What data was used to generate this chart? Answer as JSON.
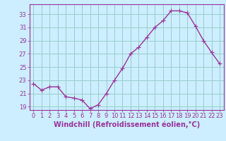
{
  "x": [
    0,
    1,
    2,
    3,
    4,
    5,
    6,
    7,
    8,
    9,
    10,
    11,
    12,
    13,
    14,
    15,
    16,
    17,
    18,
    19,
    20,
    21,
    22,
    23
  ],
  "y": [
    22.5,
    21.5,
    22.0,
    22.0,
    20.5,
    20.3,
    20.0,
    18.7,
    19.3,
    21.0,
    23.0,
    24.8,
    27.0,
    28.0,
    29.5,
    31.0,
    32.0,
    33.5,
    33.5,
    33.2,
    31.2,
    29.0,
    27.2,
    25.5
  ],
  "line_color": "#993399",
  "marker": "+",
  "marker_size": 4,
  "bg_color": "#cceeff",
  "grid_color": "#99cccc",
  "xlabel": "Windchill (Refroidissement éolien,°C)",
  "xlim": [
    -0.5,
    23.5
  ],
  "ylim": [
    18.5,
    34.5
  ],
  "yticks": [
    19,
    21,
    23,
    25,
    27,
    29,
    31,
    33
  ],
  "xticks": [
    0,
    1,
    2,
    3,
    4,
    5,
    6,
    7,
    8,
    9,
    10,
    11,
    12,
    13,
    14,
    15,
    16,
    17,
    18,
    19,
    20,
    21,
    22,
    23
  ],
  "tick_color": "#993399",
  "tick_fontsize": 6,
  "xlabel_fontsize": 7,
  "axis_color": "#993399",
  "line_width": 1.0
}
